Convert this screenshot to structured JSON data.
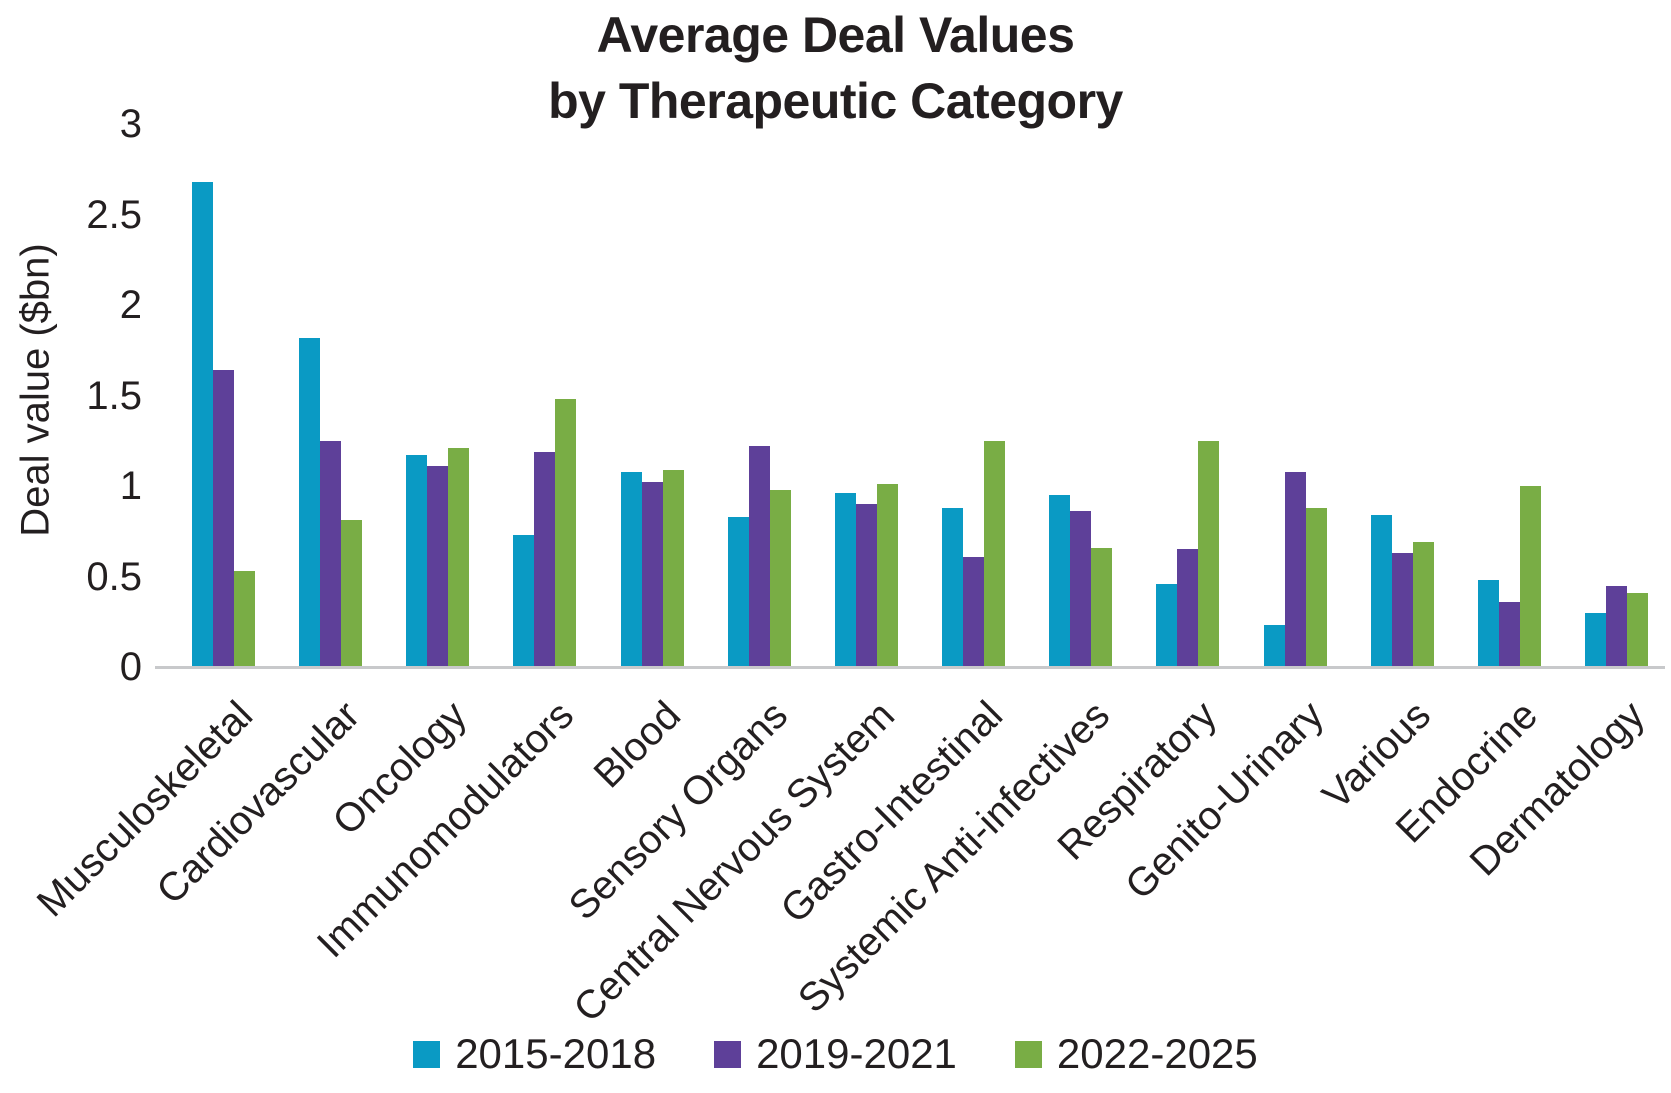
{
  "title": {
    "line1": "Average Deal Values",
    "line2": "by Therapeutic Category"
  },
  "colors": {
    "series_2015_2018": "#0a9ac4",
    "series_2019_2021": "#5e4099",
    "series_2022_2025": "#79ad45",
    "text": "#231f20",
    "axis_line": "#c8c9cb",
    "background": "#ffffff"
  },
  "chart_data": {
    "type": "bar",
    "title": "Average Deal Values by Therapeutic Category",
    "xlabel": "",
    "ylabel": "Deal value ($bn)",
    "ylim": [
      0,
      3
    ],
    "yticks": [
      3,
      2.5,
      2,
      1.5,
      1,
      0.5,
      0
    ],
    "grid": false,
    "legend_position": "bottom",
    "categories": [
      "Musculoskeletal",
      "Cardiovascular",
      "Oncology",
      "Immunomodulators",
      "Blood",
      "Sensory Organs",
      "Central Nervous System",
      "Gastro-Intestinal",
      "Systemic Anti-infectives",
      "Respiratory",
      "Genito-Urinary",
      "Various",
      "Endocrine",
      "Dermatology"
    ],
    "series": [
      {
        "name": "2015-2018",
        "color": "#0a9ac4",
        "values": [
          2.68,
          1.82,
          1.17,
          0.73,
          1.08,
          0.83,
          0.96,
          0.88,
          0.95,
          0.46,
          0.23,
          0.84,
          0.48,
          0.3
        ]
      },
      {
        "name": "2019-2021",
        "color": "#5e4099",
        "values": [
          1.64,
          1.25,
          1.11,
          1.19,
          1.02,
          1.22,
          0.9,
          0.61,
          0.86,
          0.65,
          1.08,
          0.63,
          0.36,
          0.45
        ]
      },
      {
        "name": "2022-2025",
        "color": "#79ad45",
        "values": [
          0.53,
          0.81,
          1.21,
          1.48,
          1.09,
          0.98,
          1.01,
          1.25,
          0.66,
          1.25,
          0.88,
          0.69,
          1.0,
          0.41
        ]
      }
    ]
  }
}
